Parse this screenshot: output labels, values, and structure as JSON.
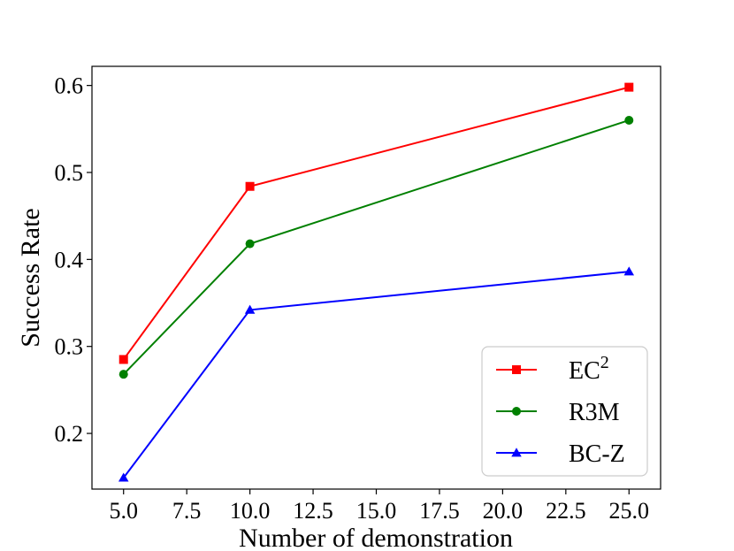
{
  "chart_data": {
    "type": "line",
    "title": "",
    "xlabel": "Number of demonstration",
    "ylabel": "Success Rate",
    "x": [
      5,
      10,
      25
    ],
    "xlim": [
      3.75,
      26.25
    ],
    "ylim": [
      0.136,
      0.622
    ],
    "xticks": [
      5.0,
      7.5,
      10.0,
      12.5,
      15.0,
      17.5,
      20.0,
      22.5,
      25.0
    ],
    "xtick_labels": [
      "5.0",
      "7.5",
      "10.0",
      "12.5",
      "15.0",
      "17.5",
      "20.0",
      "22.5",
      "25.0"
    ],
    "yticks": [
      0.2,
      0.3,
      0.4,
      0.5,
      0.6
    ],
    "ytick_labels": [
      "0.2",
      "0.3",
      "0.4",
      "0.5",
      "0.6"
    ],
    "grid": false,
    "legend_position": "lower-right",
    "series": [
      {
        "name": "EC",
        "name_sup": "2",
        "color": "#ff0000",
        "marker": "square",
        "values": [
          0.285,
          0.484,
          0.598
        ]
      },
      {
        "name": "R3M",
        "name_sup": "",
        "color": "#008000",
        "marker": "circle",
        "values": [
          0.268,
          0.418,
          0.56
        ]
      },
      {
        "name": "BC-Z",
        "name_sup": "",
        "color": "#0000ff",
        "marker": "triangle",
        "values": [
          0.149,
          0.342,
          0.386
        ]
      }
    ]
  }
}
